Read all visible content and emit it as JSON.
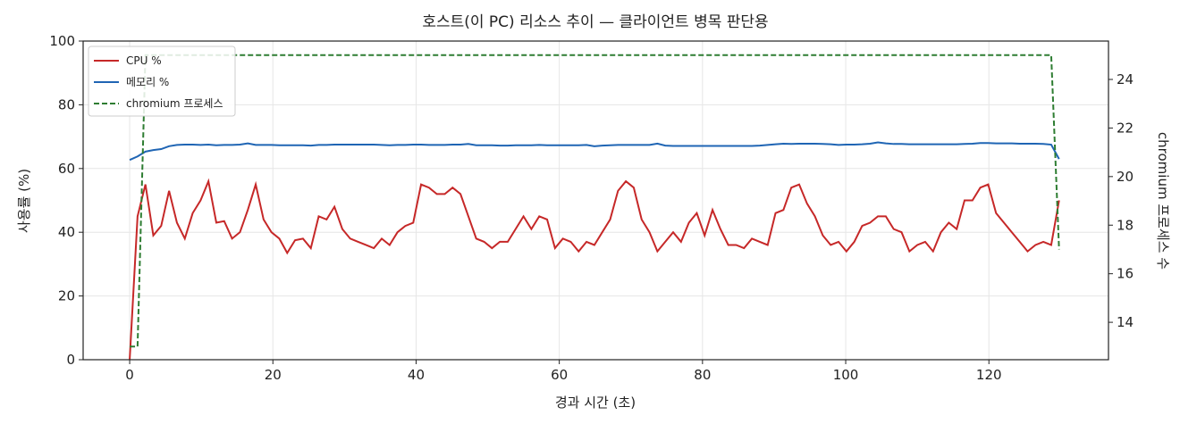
{
  "chart_data": {
    "type": "line",
    "title": "호스트(이 PC) 리소스 추이 — 클라이언트 병목 판단용",
    "xlabel": "경과 시간 (초)",
    "ylabel": "사용률 (%)",
    "y2label": "chromium 프로세스 수",
    "x": [
      0,
      1.1,
      2.2,
      3.3,
      4.4,
      5.5,
      6.6,
      7.7,
      8.8,
      9.9,
      11,
      12.1,
      13.2,
      14.3,
      15.4,
      16.5,
      17.6,
      18.7,
      19.8,
      20.9,
      22,
      23.1,
      24.2,
      25.3,
      26.4,
      27.5,
      28.6,
      29.7,
      30.8,
      31.9,
      33,
      34.1,
      35.2,
      36.3,
      37.4,
      38.5,
      39.6,
      40.7,
      41.8,
      42.9,
      44,
      45.1,
      46.2,
      47.3,
      48.4,
      49.5,
      50.6,
      51.7,
      52.8,
      53.9,
      55,
      56.1,
      57.2,
      58.3,
      59.4,
      60.5,
      61.6,
      62.7,
      63.8,
      64.9,
      66,
      67.1,
      68.2,
      69.3,
      70.4,
      71.5,
      72.6,
      73.7,
      74.8,
      75.9,
      77,
      78.1,
      79.2,
      80.3,
      81.4,
      82.5,
      83.6,
      84.7,
      85.8,
      86.9,
      88,
      89.1,
      90.2,
      91.3,
      92.4,
      93.5,
      94.6,
      95.7,
      96.8,
      97.9,
      99,
      100.1,
      101.2,
      102.3,
      103.4,
      104.5,
      105.6,
      106.7,
      107.8,
      108.9,
      110,
      111.1,
      112.2,
      113.3,
      114.4,
      115.5,
      116.6,
      117.7,
      118.8,
      119.9,
      121,
      122.1,
      123.2,
      124.3,
      125.4,
      126.5,
      127.6,
      128.7,
      129.8
    ],
    "series": [
      {
        "name": "CPU %",
        "color": "#c62828",
        "axis": "y",
        "linestyle": "solid",
        "values": [
          0,
          45,
          55,
          39,
          42,
          53,
          43,
          38,
          46,
          50,
          56,
          43,
          43.5,
          38,
          40,
          47,
          55,
          44,
          40,
          38,
          33.5,
          37.5,
          38,
          35,
          45,
          44,
          48,
          41,
          38,
          37,
          36,
          35,
          38,
          36,
          40,
          42,
          43,
          55,
          54,
          52,
          52,
          54,
          52,
          45,
          38,
          37,
          35,
          37,
          37,
          41,
          45,
          41,
          45,
          44,
          35,
          38,
          37,
          34,
          37,
          36,
          40,
          44,
          53,
          56,
          54,
          44,
          40,
          34,
          37,
          40,
          37,
          43,
          46,
          39,
          47,
          41,
          36,
          36,
          35,
          38,
          37,
          36,
          46,
          47,
          54,
          55,
          49,
          45,
          39,
          36,
          37,
          34,
          37,
          42,
          43,
          45,
          45,
          41,
          40,
          34,
          36,
          37,
          34,
          40,
          43,
          41,
          50,
          50,
          54,
          55,
          46,
          43,
          40,
          37,
          34,
          36,
          37,
          36,
          50
        ]
      },
      {
        "name": "메모리 %",
        "color": "#1f65b4",
        "axis": "y",
        "linestyle": "solid",
        "values": [
          62.7,
          63.8,
          65.3,
          65.8,
          66.1,
          67.0,
          67.4,
          67.5,
          67.5,
          67.4,
          67.5,
          67.3,
          67.4,
          67.4,
          67.5,
          67.9,
          67.4,
          67.4,
          67.4,
          67.3,
          67.3,
          67.3,
          67.3,
          67.2,
          67.4,
          67.4,
          67.5,
          67.5,
          67.5,
          67.5,
          67.5,
          67.5,
          67.4,
          67.3,
          67.4,
          67.4,
          67.5,
          67.5,
          67.4,
          67.4,
          67.4,
          67.5,
          67.5,
          67.7,
          67.3,
          67.3,
          67.3,
          67.2,
          67.2,
          67.3,
          67.3,
          67.3,
          67.4,
          67.3,
          67.3,
          67.3,
          67.3,
          67.3,
          67.4,
          67.0,
          67.2,
          67.3,
          67.4,
          67.4,
          67.4,
          67.4,
          67.4,
          67.8,
          67.2,
          67.1,
          67.1,
          67.1,
          67.1,
          67.1,
          67.1,
          67.1,
          67.1,
          67.1,
          67.1,
          67.1,
          67.2,
          67.4,
          67.6,
          67.8,
          67.7,
          67.8,
          67.8,
          67.8,
          67.7,
          67.6,
          67.4,
          67.5,
          67.5,
          67.6,
          67.8,
          68.2,
          67.9,
          67.7,
          67.7,
          67.6,
          67.6,
          67.6,
          67.6,
          67.6,
          67.6,
          67.6,
          67.7,
          67.8,
          68.0,
          68.0,
          67.9,
          67.9,
          67.9,
          67.8,
          67.8,
          67.8,
          67.7,
          67.5,
          63.0
        ]
      },
      {
        "name": "chromium 프로세스",
        "color": "#2e7d32",
        "axis": "y2",
        "linestyle": "dashed",
        "values": [
          13,
          13,
          25,
          25,
          25,
          25,
          25,
          25,
          25,
          25,
          25,
          25,
          25,
          25,
          25,
          25,
          25,
          25,
          25,
          25,
          25,
          25,
          25,
          25,
          25,
          25,
          25,
          25,
          25,
          25,
          25,
          25,
          25,
          25,
          25,
          25,
          25,
          25,
          25,
          25,
          25,
          25,
          25,
          25,
          25,
          25,
          25,
          25,
          25,
          25,
          25,
          25,
          25,
          25,
          25,
          25,
          25,
          25,
          25,
          25,
          25,
          25,
          25,
          25,
          25,
          25,
          25,
          25,
          25,
          25,
          25,
          25,
          25,
          25,
          25,
          25,
          25,
          25,
          25,
          25,
          25,
          25,
          25,
          25,
          25,
          25,
          25,
          25,
          25,
          25,
          25,
          25,
          25,
          25,
          25,
          25,
          25,
          25,
          25,
          25,
          25,
          25,
          25,
          25,
          25,
          25,
          25,
          25,
          25,
          25,
          25,
          25,
          25,
          25,
          25,
          25,
          25,
          25,
          17
        ]
      }
    ],
    "xlim": [
      -6.5,
      136.7
    ],
    "xticks": [
      0,
      20,
      40,
      60,
      80,
      100,
      120
    ],
    "ylim": [
      0,
      100
    ],
    "yticks": [
      0,
      20,
      40,
      60,
      80,
      100
    ],
    "y2lim": [
      12.46,
      25.58
    ],
    "y2ticks": [
      14,
      16,
      18,
      20,
      22,
      24
    ],
    "grid": true,
    "legend": "upper-left"
  }
}
